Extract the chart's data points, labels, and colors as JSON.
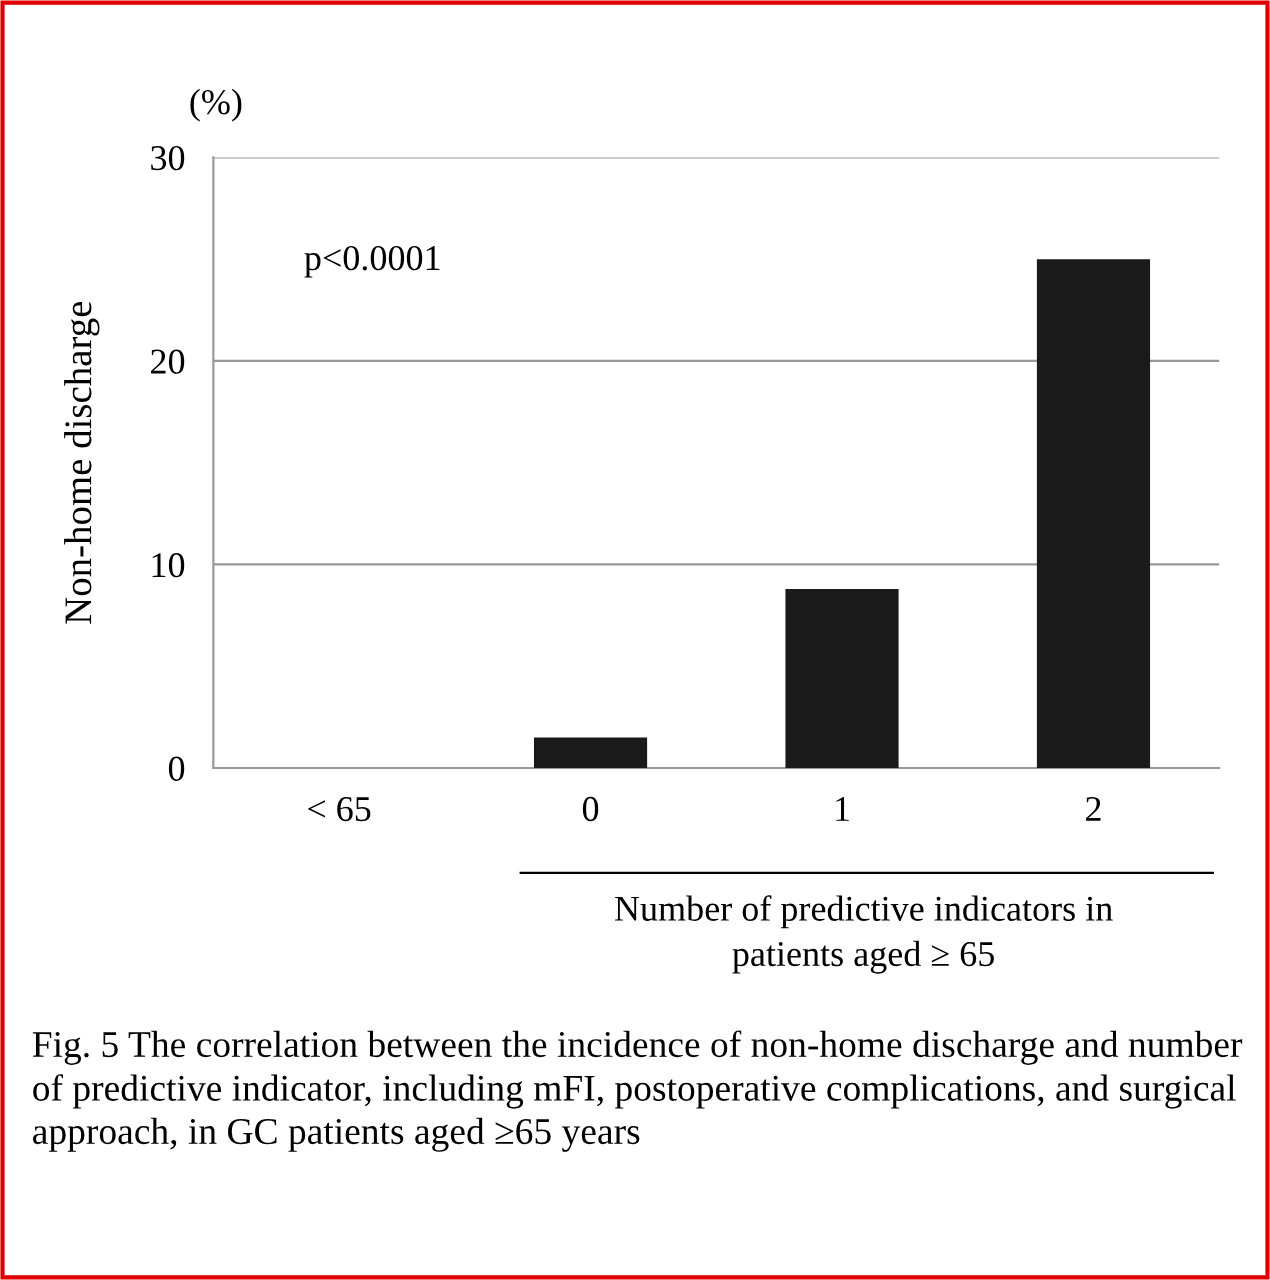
{
  "chart_data": {
    "type": "bar",
    "ylabel": "Non-home discharge",
    "xlabel": "Number of predictive indicators in\npatients aged ≥ 65",
    "categories": [
      "< 65",
      "0",
      "1",
      "2"
    ],
    "values": [
      0,
      1.5,
      8.8,
      25
    ],
    "color": "#1a1a1a",
    "ylim": [
      0,
      30
    ],
    "yticks": [
      0,
      10,
      20,
      30
    ],
    "grid": "y",
    "annotations": [
      "(%)",
      "p<0.0001",
      "Fig. 5 The correlation between the incidence of non-home discharge and number of predictive indicator, including mFI, postoperative complications, and surgical approach, in GC patients aged ≥65 years"
    ]
  }
}
